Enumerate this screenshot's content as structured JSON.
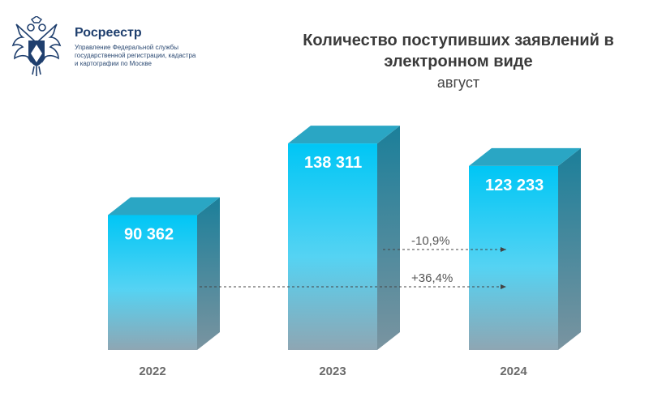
{
  "org": {
    "name": "Росреестр",
    "subtitle": "Управление Федеральной службы государственной регистрации, кадастра и картографии по Москве"
  },
  "colors": {
    "bar_top": "#00c6f5",
    "bar_bottom": "#8ea6b3",
    "bar_side": "#1b7f9a",
    "bar_cap": "#2aa6c4",
    "text_dark": "#3a3a3a",
    "logo_blue": "#1f3f6e"
  },
  "chart_data": {
    "type": "bar",
    "title": "Количество поступивших заявлений в электронном виде",
    "subtitle": "август",
    "categories": [
      "2022",
      "2023",
      "2024"
    ],
    "values": [
      90362,
      138311,
      123233
    ],
    "value_labels": [
      "90 362",
      "138 311",
      "123 233"
    ],
    "style": "3d",
    "grid": false,
    "annotations": [
      {
        "label": "-10,9%",
        "from": "2023",
        "to": "2024"
      },
      {
        "label": "+36,4%",
        "from": "2022",
        "to": "2024"
      }
    ]
  }
}
